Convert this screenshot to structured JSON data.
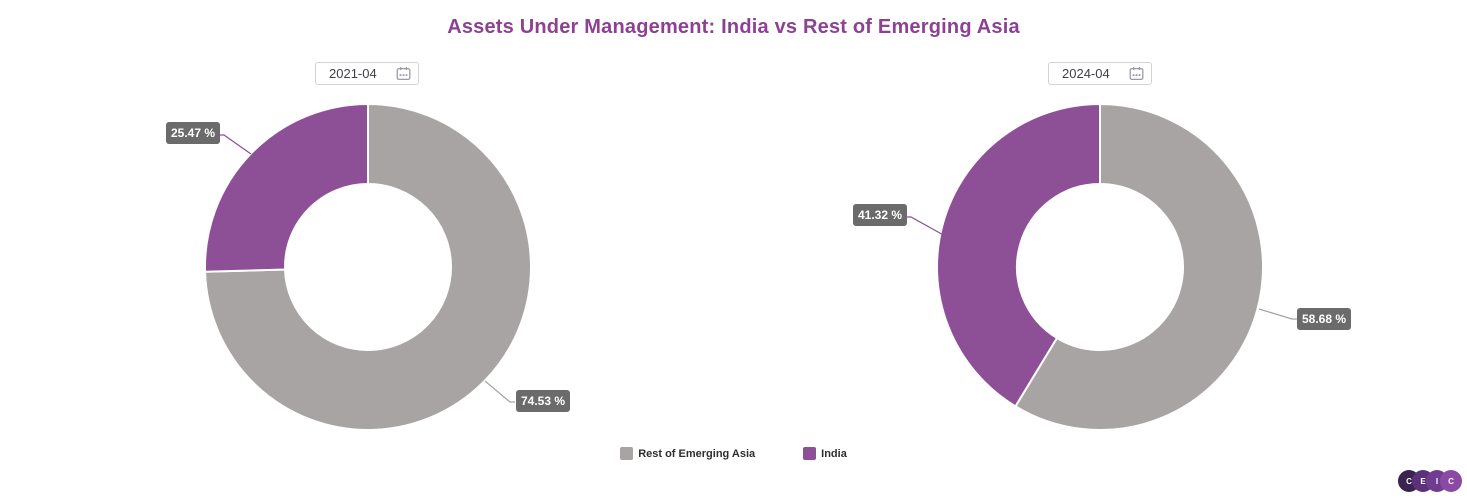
{
  "title": {
    "text": "Assets Under Management: India vs Rest of Emerging Asia",
    "color": "#8c4193"
  },
  "label_style": {
    "bg": "#6b6b6b",
    "text_color": "#ffffff"
  },
  "legend": {
    "items": [
      {
        "label": "Rest of Emerging Asia",
        "color": "#a8a4a4"
      },
      {
        "label": "India",
        "color": "#8d4f96"
      }
    ]
  },
  "logo": {
    "letters": [
      "C",
      "E",
      "I",
      "C"
    ],
    "colors": [
      "#3b2350",
      "#5b3279",
      "#6f3c90",
      "#8a4aa3"
    ]
  },
  "chart_data": [
    {
      "type": "pie",
      "subtype": "donut",
      "title": "Assets Under Management: India vs Rest of Emerging Asia",
      "date": "2021-04",
      "categories": [
        "Rest of Emerging Asia",
        "India"
      ],
      "values": [
        74.53,
        25.47
      ],
      "labels": [
        "74.53 %",
        "25.47 %"
      ],
      "colors": [
        "#a8a4a4",
        "#8d4f96"
      ],
      "start_angle": 0,
      "direction": "clockwise",
      "inner_radius_ratio": 0.51,
      "legend_position": "bottom"
    },
    {
      "type": "pie",
      "subtype": "donut",
      "title": "Assets Under Management: India vs Rest of Emerging Asia",
      "date": "2024-04",
      "categories": [
        "Rest of Emerging Asia",
        "India"
      ],
      "values": [
        58.68,
        41.32
      ],
      "labels": [
        "58.68 %",
        "41.32 %"
      ],
      "colors": [
        "#a8a4a4",
        "#8d4f96"
      ],
      "start_angle": 0,
      "direction": "clockwise",
      "inner_radius_ratio": 0.51,
      "legend_position": "bottom"
    }
  ]
}
